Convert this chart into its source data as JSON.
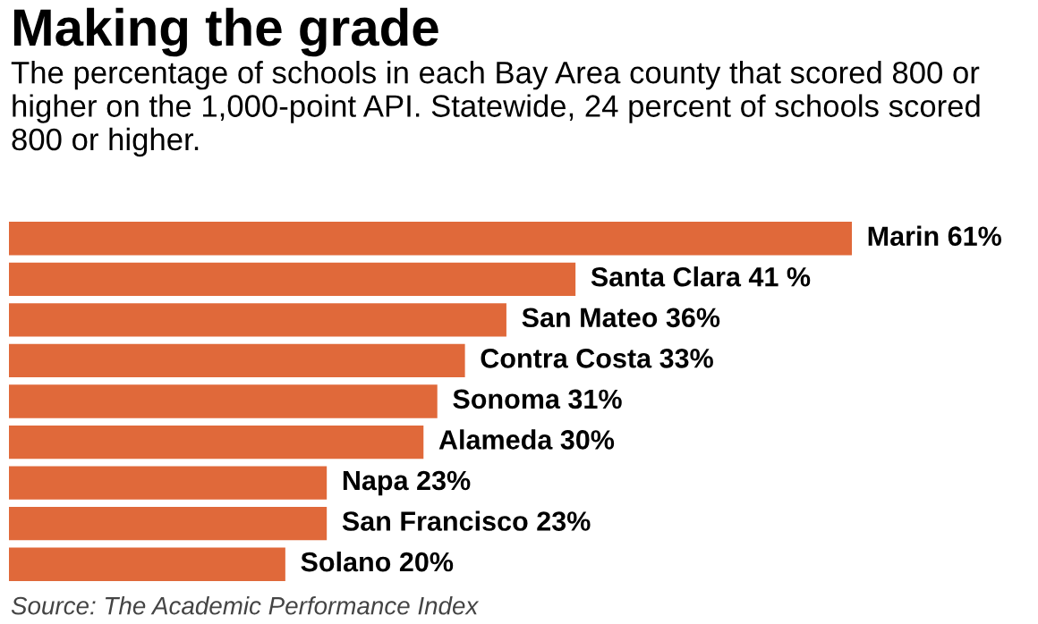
{
  "chart_data": {
    "type": "bar",
    "orientation": "horizontal",
    "title": "Making the grade",
    "subtitle": "The percentage of schools in each Bay Area county that scored 800 or higher on the 1,000-point API. Statewide, 24 percent of schools scored 800 or higher.",
    "categories": [
      null,
      null,
      null,
      null,
      null,
      null,
      null,
      null,
      null
    ],
    "values": [
      61,
      41,
      36,
      33,
      31,
      30,
      23,
      23,
      20
    ],
    "value_labels": [
      "Marin 61%",
      "Santa Clara 41 %",
      "San Mateo 36%",
      "Contra Costa 33%",
      "Sonoma 31%",
      "Alameda 30%",
      "Napa 23%",
      "San Francisco 23%",
      "Solano 20%"
    ],
    "color": "#e0693a",
    "annotations": [
      "Source: The Academic Performance Index"
    ]
  }
}
